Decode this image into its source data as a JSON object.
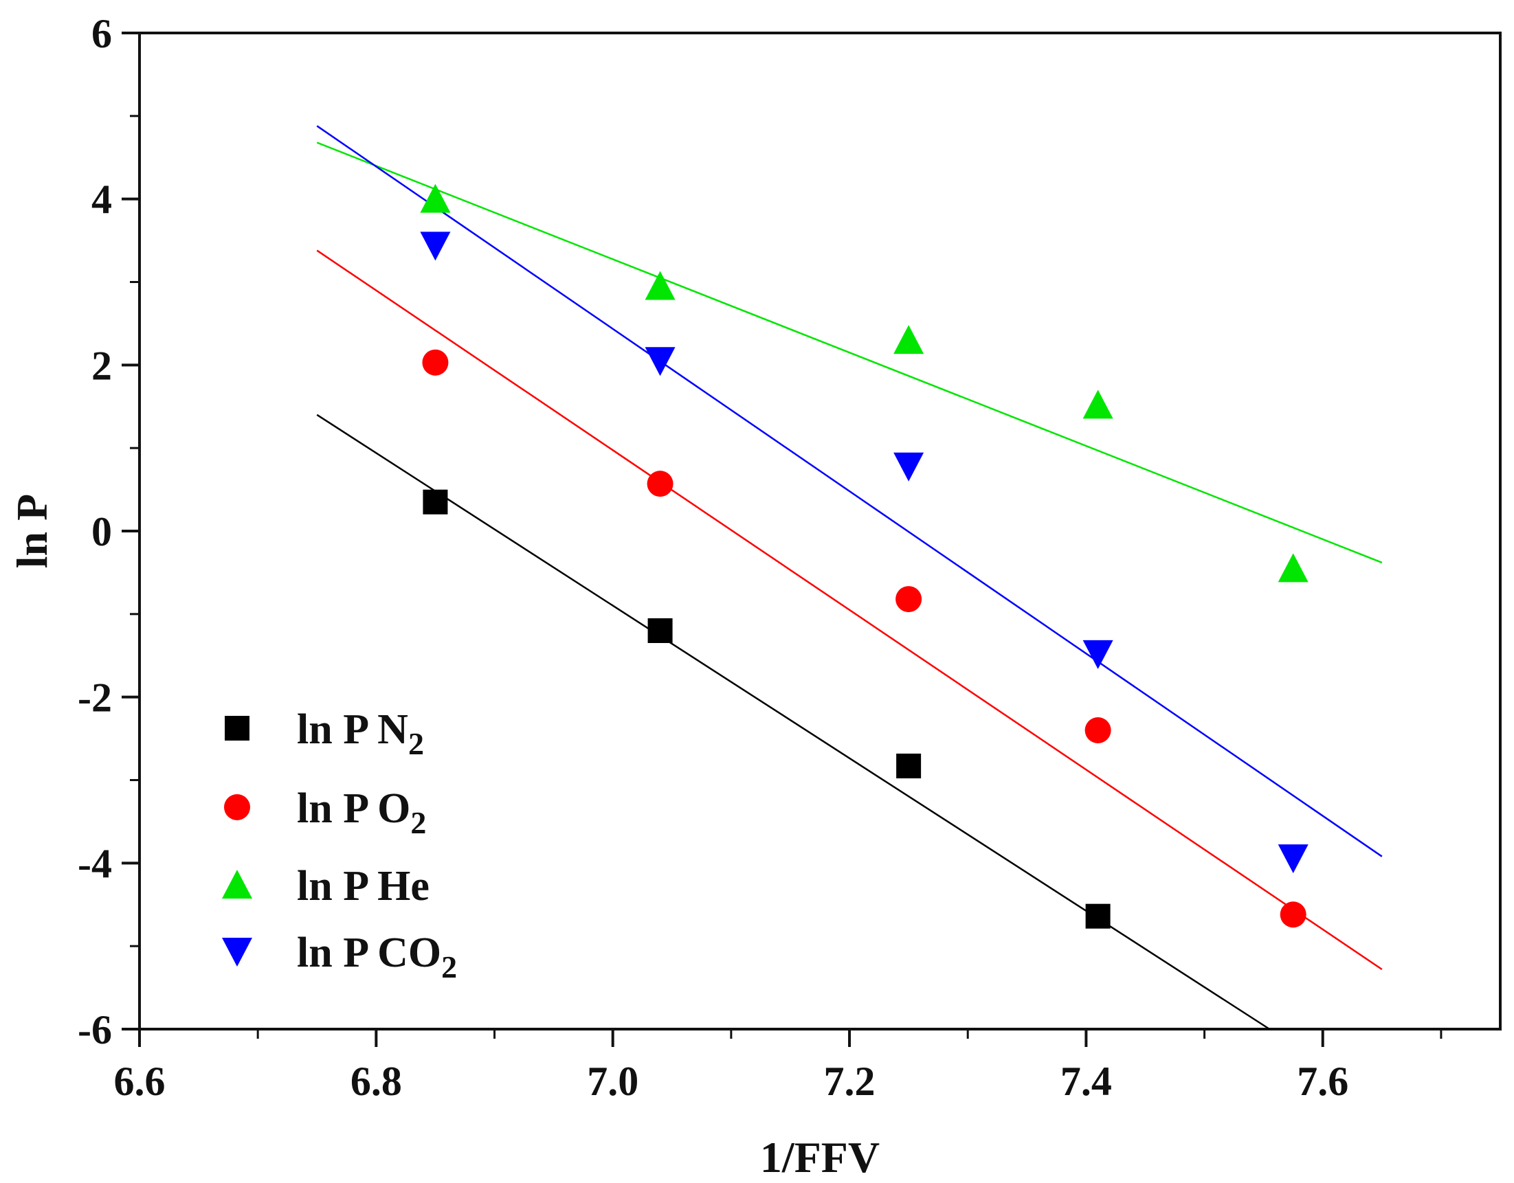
{
  "chart_data": {
    "type": "scatter",
    "title": "",
    "xlabel": "1/FFV",
    "ylabel": "ln P",
    "xlim": [
      6.6,
      7.75
    ],
    "ylim": [
      -6,
      6
    ],
    "xticks": [
      6.6,
      6.8,
      7.0,
      7.2,
      7.4,
      7.6
    ],
    "xtick_labels": [
      "6.6",
      "6.8",
      "7.0",
      "7.2",
      "7.4",
      "7.6"
    ],
    "yticks": [
      -6,
      -4,
      -2,
      0,
      2,
      4,
      6
    ],
    "ytick_labels": [
      "-6",
      "-4",
      "-2",
      "0",
      "2",
      "4",
      "6"
    ],
    "grid": false,
    "legend_position": "bottom-left",
    "series": [
      {
        "name": "ln P N2",
        "label_main": "ln P N",
        "label_sub": "2",
        "color": "#000000",
        "marker": "square",
        "x": [
          6.85,
          7.04,
          7.25,
          7.41
        ],
        "y": [
          0.35,
          -1.2,
          -2.83,
          -4.64
        ],
        "fit": {
          "x": [
            6.75,
            7.555
          ],
          "y": [
            1.4,
            -6.0
          ]
        }
      },
      {
        "name": "ln P O2",
        "label_main": "ln P O",
        "label_sub": "2",
        "color": "#ff0000",
        "marker": "circle",
        "x": [
          6.85,
          7.04,
          7.25,
          7.41,
          7.575
        ],
        "y": [
          2.03,
          0.57,
          -0.82,
          -2.4,
          -4.62
        ],
        "fit": {
          "x": [
            6.75,
            7.65
          ],
          "y": [
            3.38,
            -5.28
          ]
        }
      },
      {
        "name": "ln P He",
        "label_main": "ln P He",
        "label_sub": "",
        "color": "#00e600",
        "marker": "triangle-up",
        "x": [
          6.85,
          7.04,
          7.25,
          7.41,
          7.575
        ],
        "y": [
          4.0,
          2.95,
          2.3,
          1.52,
          -0.45
        ],
        "fit": {
          "x": [
            6.75,
            7.65
          ],
          "y": [
            4.68,
            -0.38
          ]
        }
      },
      {
        "name": "ln P CO2",
        "label_main": "ln P CO",
        "label_sub": "2",
        "color": "#0000ff",
        "marker": "triangle-down",
        "x": [
          6.85,
          7.04,
          7.25,
          7.41,
          7.575
        ],
        "y": [
          3.44,
          2.05,
          0.78,
          -1.48,
          -3.94
        ],
        "fit": {
          "x": [
            6.75,
            7.65
          ],
          "y": [
            4.88,
            -3.92
          ]
        }
      }
    ]
  }
}
